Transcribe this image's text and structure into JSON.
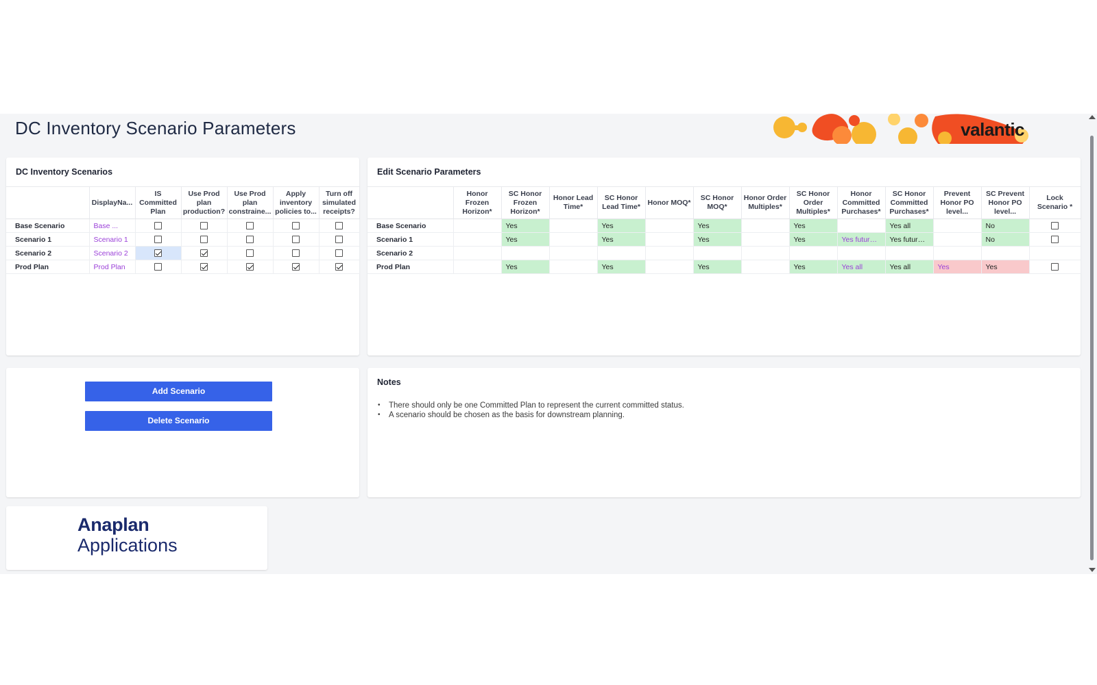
{
  "page": {
    "title": "DC Inventory Scenario Parameters"
  },
  "brand": {
    "name": "valantic",
    "colors": [
      "#f7b733",
      "#f04e23",
      "#fc8a3a",
      "#ffd36b"
    ]
  },
  "scenarios_card": {
    "title": "DC Inventory Scenarios",
    "headers": [
      "DisplayNa...",
      "IS Committed Plan",
      "Use Prod plan production?",
      "Use Prod plan constraine...",
      "Apply inventory policies to...",
      "Turn off simulated receipts?"
    ],
    "rows": [
      {
        "label": "Base Scenario",
        "display": "Base ...",
        "checks": [
          false,
          false,
          false,
          false,
          false
        ]
      },
      {
        "label": "Scenario 1",
        "display": "Scenario 1",
        "checks": [
          false,
          false,
          false,
          false,
          false
        ]
      },
      {
        "label": "Scenario 2",
        "display": "Scenario 2",
        "checks": [
          true,
          true,
          false,
          false,
          false
        ]
      },
      {
        "label": "Prod Plan",
        "display": "Prod Plan",
        "checks": [
          false,
          true,
          true,
          true,
          true
        ]
      }
    ]
  },
  "params_card": {
    "title": "Edit Scenario Parameters",
    "headers": [
      "Honor Frozen Horizon*",
      "SC Honor Frozen Horizon*",
      "Honor Lead Time*",
      "SC Honor Lead Time*",
      "Honor MOQ*",
      "SC Honor MOQ*",
      "Honor Order Multiples*",
      "SC Honor Order Multiples*",
      "Honor Committed Purchases*",
      "SC Honor Committed Purchases*",
      "Prevent Honor PO level...",
      "SC Prevent Honor PO level...",
      "Lock Scenario *"
    ],
    "rows": [
      {
        "label": "Base Scenario",
        "cells": [
          "",
          "Yes",
          "",
          "Yes",
          "",
          "Yes",
          "",
          "Yes",
          "",
          "Yes all",
          "",
          "No"
        ],
        "lock": "unchecked"
      },
      {
        "label": "Scenario 1",
        "cells": [
          "",
          "Yes",
          "",
          "Yes",
          "",
          "Yes",
          "",
          "Yes",
          "Yes future ...",
          "Yes future ...",
          "",
          "No"
        ],
        "lock": "unchecked"
      },
      {
        "label": "Scenario 2",
        "cells": [
          "",
          "",
          "",
          "",
          "",
          "",
          "",
          "",
          "",
          "",
          "",
          ""
        ],
        "lock": "none"
      },
      {
        "label": "Prod Plan",
        "cells": [
          "",
          "Yes",
          "",
          "Yes",
          "",
          "Yes",
          "",
          "Yes",
          "Yes all",
          "Yes all",
          "Yes",
          "Yes"
        ],
        "lock": "unchecked"
      }
    ],
    "highlight_colors": {
      "green": "#c8f0cf",
      "pink": "#f9c9cb",
      "purple_text": "#9a3fd8"
    }
  },
  "actions": {
    "add_label": "Add Scenario",
    "delete_label": "Delete Scenario",
    "button_color": "#3662e8"
  },
  "notes": {
    "title": "Notes",
    "items": [
      "There should only be one Committed Plan to represent the current committed status.",
      "A scenario should be chosen as the basis for downstream planning."
    ]
  },
  "footer_logo": {
    "line1": "Anaplan",
    "line2": "Applications"
  }
}
